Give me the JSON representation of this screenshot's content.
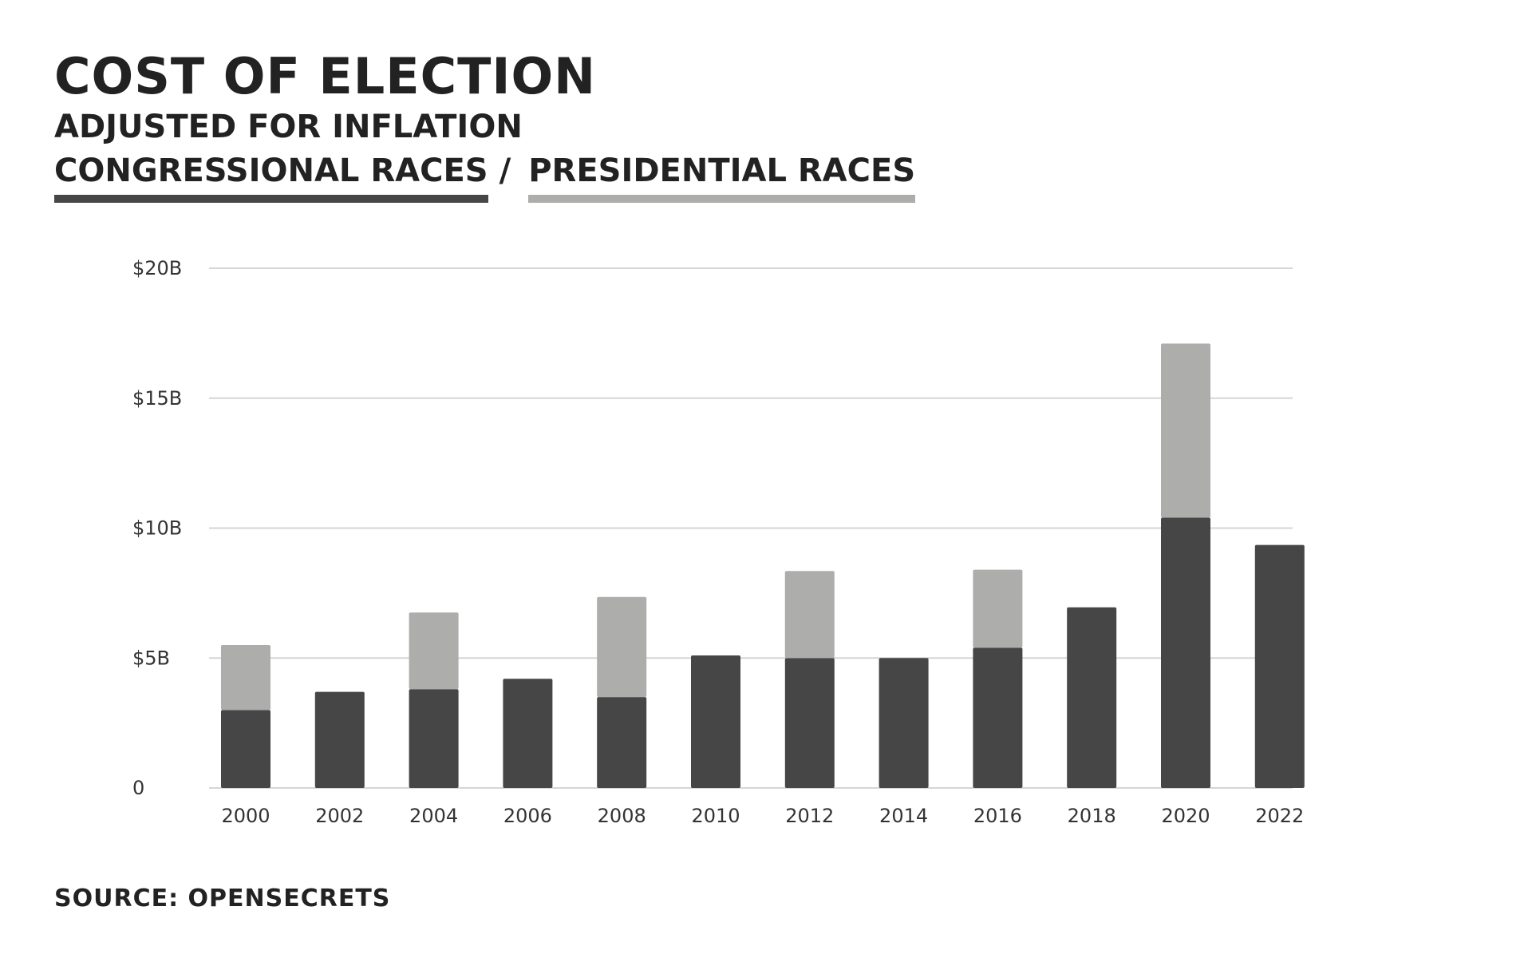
{
  "title": "COST OF ELECTION",
  "subtitle": "ADJUSTED FOR INFLATION",
  "legend": {
    "separator": "/",
    "items": [
      {
        "label": "CONGRESSIONAL RACES",
        "color": "#464646"
      },
      {
        "label": "PRESIDENTIAL  RACES",
        "color": "#adadac"
      }
    ]
  },
  "source": "SOURCE: OPENSECRETS",
  "colors": {
    "congressional": "#464646",
    "presidential": "#adadac",
    "grid": "#d6d6d6",
    "axis_text": "#333333"
  },
  "chart_data": {
    "type": "bar",
    "stacked": true,
    "categories": [
      "2000",
      "2002",
      "2004",
      "2006",
      "2008",
      "2010",
      "2012",
      "2014",
      "2016",
      "2018",
      "2020",
      "2022"
    ],
    "series": [
      {
        "name": "CONGRESSIONAL RACES",
        "values": [
          3.0,
          3.7,
          3.8,
          4.2,
          3.5,
          5.1,
          5.0,
          5.0,
          5.4,
          6.95,
          10.4,
          9.35
        ]
      },
      {
        "name": "PRESIDENTIAL  RACES",
        "values": [
          2.5,
          0,
          2.95,
          0,
          3.85,
          0,
          3.35,
          0,
          3.0,
          0,
          6.7,
          0
        ]
      }
    ],
    "ylim": [
      0,
      20
    ],
    "yticks": [
      0,
      5,
      10,
      15,
      20
    ],
    "ytick_labels": [
      "0",
      "$5B",
      "$10B",
      "$15B",
      "$20B"
    ],
    "grid": true,
    "xlabel": "",
    "ylabel": ""
  }
}
